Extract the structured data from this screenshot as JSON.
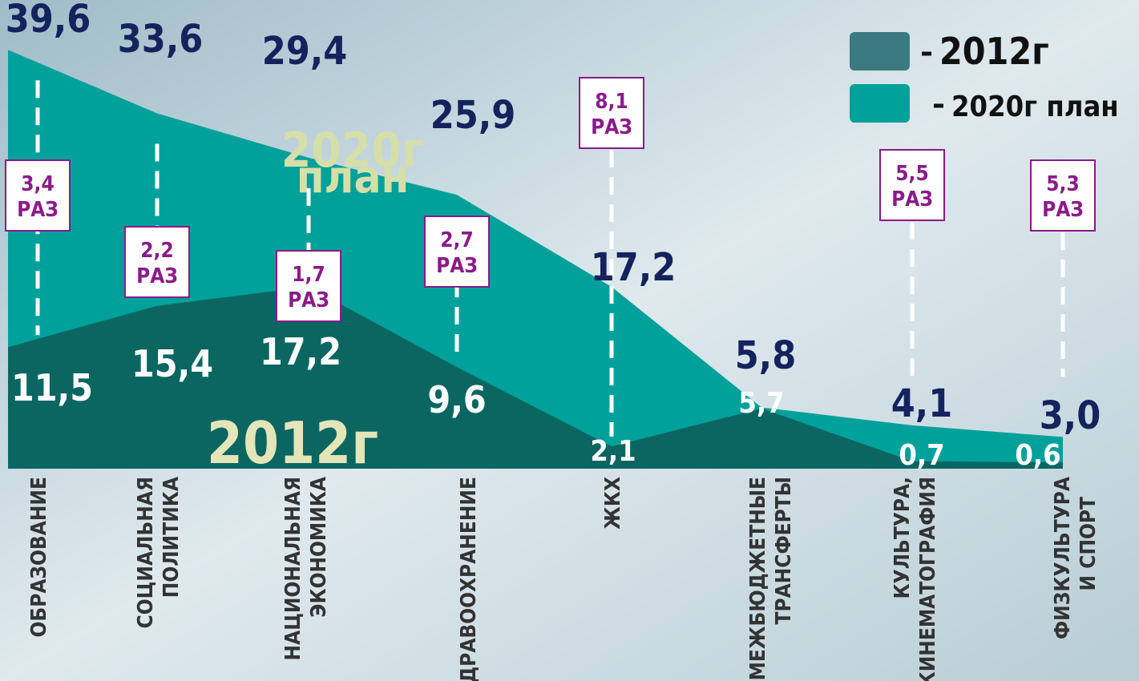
{
  "chart_data": {
    "type": "area",
    "categories": [
      [
        "ОБРАЗОВАНИЕ"
      ],
      [
        "СОЦИАЛЬНАЯ",
        "ПОЛИТИКА"
      ],
      [
        "НАЦИОНАЛЬНАЯ",
        "ЭКОНОМИКА"
      ],
      [
        "ЗДРАВООХРАНЕНИЕ"
      ],
      [
        "ЖКХ"
      ],
      [
        "МЕЖБЮДЖЕТНЫЕ",
        "ТРАНСФЕРТЫ"
      ],
      [
        "КУЛЬТУРА,",
        "КИНЕМАТОГРАФИЯ"
      ],
      [
        "ФИЗКУЛЬТУРА",
        "И СПОРТ"
      ]
    ],
    "series": [
      {
        "name": "2012г",
        "color": "#0b6662",
        "legend_color": "#3a7a80",
        "values": [
          11.5,
          15.4,
          17.2,
          9.6,
          2.1,
          5.7,
          0.7,
          0.6
        ],
        "value_labels": [
          "11,5",
          "15,4",
          "17,2",
          "9,6",
          "2,1",
          "5,7",
          "0,7",
          "0,6"
        ]
      },
      {
        "name": "2020г план",
        "color": "#00a19a",
        "legend_color": "#00a19a",
        "values": [
          39.6,
          33.6,
          29.4,
          25.9,
          17.2,
          5.8,
          4.1,
          3.0
        ],
        "value_labels": [
          "39,6",
          "33,6",
          "29,4",
          "25,9",
          "17,2",
          "5,8",
          "4,1",
          "3,0"
        ]
      }
    ],
    "area_labels": [
      [
        "2012г"
      ],
      [
        "2020г",
        "план"
      ]
    ],
    "ratios": [
      3.4,
      2.2,
      1.7,
      2.7,
      8.1,
      null,
      5.5,
      5.3
    ],
    "ratio_labels": [
      "3,4",
      "2,2",
      "1,7",
      "2,7",
      "8,1",
      null,
      "5,5",
      "5,3"
    ],
    "ratio_unit": "РАЗ",
    "ylim": [
      0,
      40
    ]
  }
}
